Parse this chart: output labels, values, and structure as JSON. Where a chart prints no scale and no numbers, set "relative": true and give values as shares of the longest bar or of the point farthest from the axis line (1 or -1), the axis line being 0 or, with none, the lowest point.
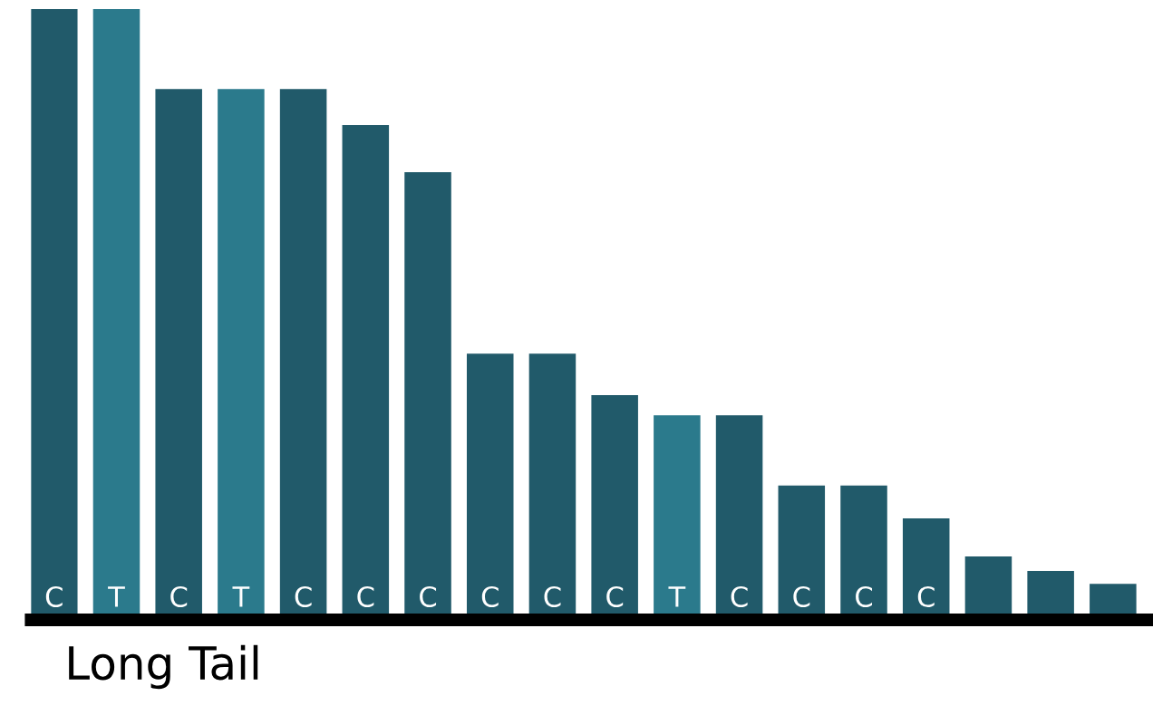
{
  "chart_data": {
    "type": "bar",
    "relative": true,
    "xlabel": "Long Tail",
    "categories": [
      "C",
      "T",
      "C",
      "T",
      "C",
      "C",
      "C",
      "C",
      "C",
      "C",
      "T",
      "C",
      "C",
      "C",
      "C",
      null,
      null,
      null
    ],
    "values": [
      1,
      1,
      0.869,
      0.869,
      0.869,
      0.81,
      0.733,
      0.436,
      0.436,
      0.368,
      0.335,
      0.335,
      0.22,
      0.22,
      0.166,
      0.104,
      0.08,
      0.059
    ],
    "colors": [
      "#215a6a",
      "#2b7a8c",
      "#215a6a",
      "#2b7a8c",
      "#215a6a",
      "#215a6a",
      "#215a6a",
      "#215a6a",
      "#215a6a",
      "#215a6a",
      "#2b7a8c",
      "#215a6a",
      "#215a6a",
      "#215a6a",
      "#215a6a",
      "#215a6a",
      "#215a6a",
      "#215a6a"
    ]
  }
}
